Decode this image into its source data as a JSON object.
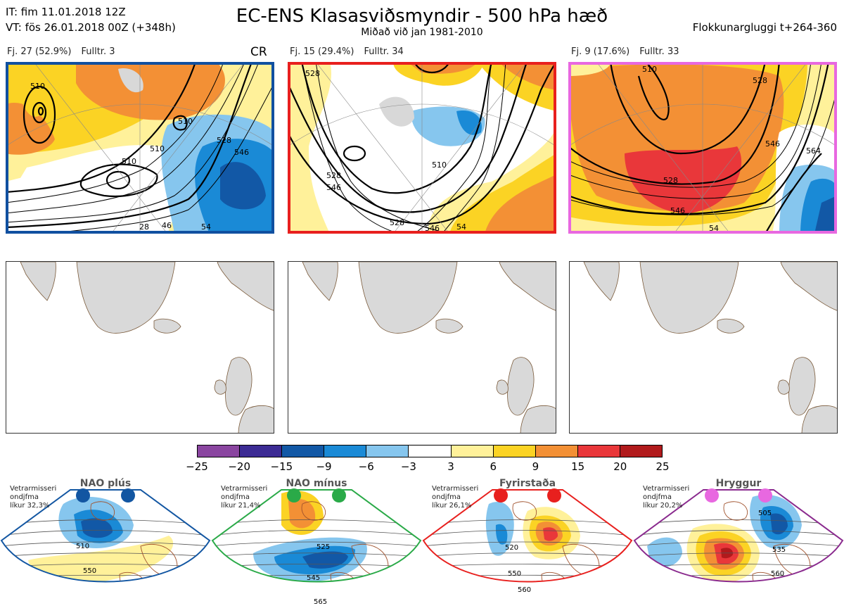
{
  "header": {
    "it_line": "IT: fim 11.01.2018 12Z",
    "vt_line": "VT: fös 26.01.2018 00Z  (+348h)",
    "title": "EC-ENS Klasasviðsmyndir - 500 hPa hæð",
    "subtitle": "Miðað við jan 1981-2010",
    "window": "Flokkunargluggi t+264-360"
  },
  "clusters": [
    {
      "fj": "Fj. 27 (52.9%)",
      "fulltr": "Fulltr. 3",
      "tag": "CR",
      "frame_color": "#1050a0",
      "contour_labels": [
        "510",
        "510",
        "510",
        "510",
        "528",
        "546",
        "28",
        "46",
        "54"
      ]
    },
    {
      "fj": "Fj. 15 (29.4%)",
      "fulltr": "Fulltr. 34",
      "tag": "",
      "frame_color": "#e8201e",
      "contour_labels": [
        "528",
        "510",
        "528",
        "546",
        "528",
        "546",
        "54"
      ]
    },
    {
      "fj": "Fj. 9 (17.6%)",
      "fulltr": "Fulltr. 33",
      "tag": "",
      "frame_color": "#e868e0",
      "contour_labels": [
        "510",
        "528",
        "546",
        "528",
        "546",
        "564",
        "54"
      ]
    }
  ],
  "colorbar": {
    "colors": [
      "#8a45a0",
      "#3c2b94",
      "#1258a6",
      "#1a8ad6",
      "#86c6ee",
      "#ffffff",
      "#fff19a",
      "#fbd324",
      "#f39035",
      "#e9373a",
      "#b11a1c"
    ],
    "ticks": [
      "−25",
      "−20",
      "−15",
      "−9",
      "−6",
      "−3",
      "3",
      "6",
      "9",
      "15",
      "20",
      "25"
    ]
  },
  "regimes": [
    {
      "name": "NAO plús",
      "dot_color": "#1256a2",
      "frame_color": "#1256a2",
      "info": [
        "Vetrarmisseri",
        "ondjfma",
        "líkur 32,3%"
      ],
      "labels": [
        "510",
        "550"
      ]
    },
    {
      "name": "NAO mínus",
      "dot_color": "#2aaa48",
      "frame_color": "#2aaa48",
      "info": [
        "Vetrarmisseri",
        "ondjfma",
        "líkur 21,4%"
      ],
      "labels": [
        "525",
        "545",
        "565"
      ]
    },
    {
      "name": "Fyrirstaða",
      "dot_color": "#e8201e",
      "frame_color": "#e8201e",
      "info": [
        "Vetrarmisseri",
        "ondjfma",
        "líkur 26,1%"
      ],
      "labels": [
        "520",
        "550",
        "560"
      ]
    },
    {
      "name": "Hryggur",
      "dot_color": "#e868e0",
      "frame_color": "#8a2a8e",
      "info": [
        "Vetrarmisseri",
        "ondjfma",
        "líkur 20,2%"
      ],
      "labels": [
        "505",
        "535",
        "560"
      ]
    }
  ]
}
